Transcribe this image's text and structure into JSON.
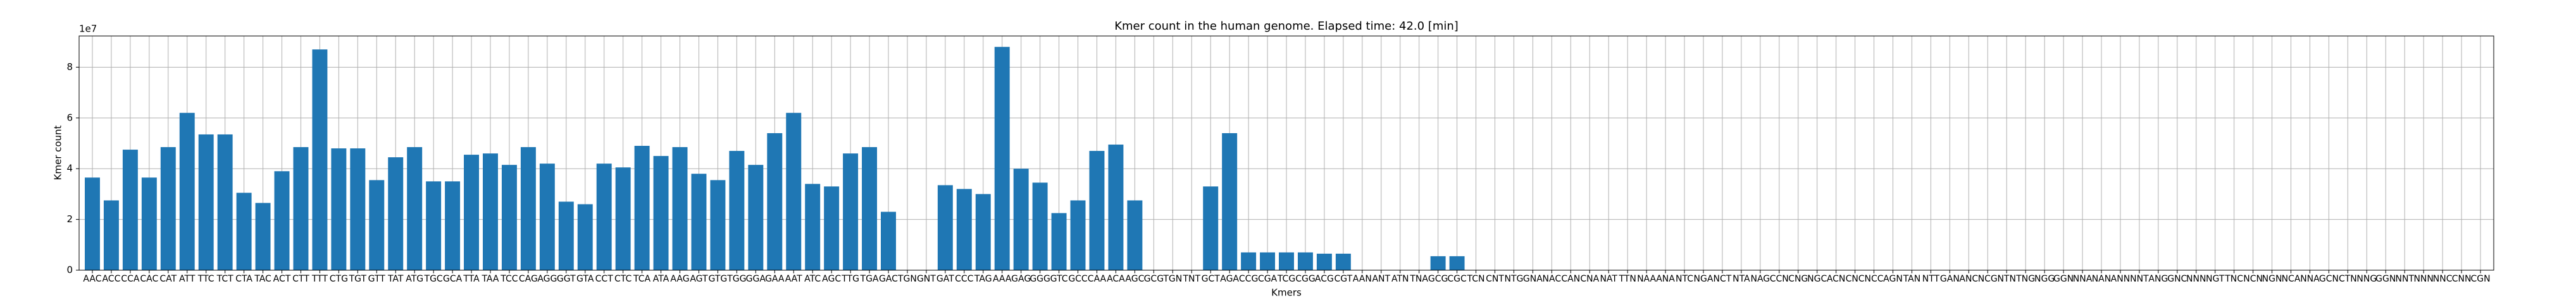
{
  "chart_data": {
    "type": "bar",
    "title": "Kmer count in the human genome. Elapsed time: 42.0 [min]",
    "x_label": "Kmers",
    "y_label": "Kmer count",
    "y_offset_label": "1e7",
    "categories": [
      "AAC",
      "ACC",
      "CCA",
      "CAC",
      "CAT",
      "ATT",
      "TTC",
      "TCT",
      "CTA",
      "TAC",
      "ACT",
      "CTT",
      "TTT",
      "CTG",
      "TGT",
      "GTT",
      "TAT",
      "ATG",
      "TGC",
      "GCA",
      "TTA",
      "TAA",
      "TCC",
      "CAG",
      "AGG",
      "GGT",
      "GTA",
      "CCT",
      "CTC",
      "TCA",
      "ATA",
      "AAG",
      "AGT",
      "GTG",
      "TGG",
      "GGA",
      "GAA",
      "AAT",
      "ATC",
      "AGC",
      "TTG",
      "TGA",
      "GAC",
      "TGN",
      "GNT",
      "GAT",
      "CCC",
      "TAG",
      "AAA",
      "GAG",
      "GGG",
      "GTC",
      "GCC",
      "CAA",
      "ACA",
      "AGC",
      "GCG",
      "TGN",
      "TNT",
      "GCT",
      "AGA",
      "CCG",
      "CGA",
      "TCG",
      "CGG",
      "ACG",
      "CGT",
      "AAN",
      "ANT",
      "ATN",
      "TNA",
      "GCG",
      "CGC",
      "TCN",
      "CNT",
      "NTG",
      "GNA",
      "NAC",
      "CAN",
      "CNA",
      "NAT",
      "TTN",
      "NAA",
      "ANA",
      "NTC",
      "NGA",
      "NCT",
      "NTA",
      "NAG",
      "CCN",
      "CNG",
      "NGC",
      "ACN",
      "CNC",
      "NCC",
      "AGN",
      "TAN",
      "NTT",
      "GAN",
      "ANC",
      "NCG",
      "NTN",
      "TNG",
      "NGG",
      "GGN",
      "NNA",
      "NAN",
      "ANN",
      "NNT",
      "ANG",
      "GNC",
      "NNN",
      "NGT",
      "TNC",
      "NCN",
      "NGN",
      "NCA",
      "NNA",
      "GCN",
      "CTN",
      "NNG",
      "GGN",
      "NNT",
      "NNN",
      "NNC",
      "CNN",
      "CGN"
    ],
    "values": [
      36500000,
      27500000,
      47500000,
      36500000,
      48500000,
      62000000,
      53500000,
      53500000,
      30500000,
      26500000,
      39000000,
      48500000,
      87000000,
      48000000,
      48000000,
      35500000,
      44500000,
      48500000,
      35000000,
      35000000,
      45500000,
      46000000,
      41500000,
      48500000,
      42000000,
      27000000,
      26000000,
      42000000,
      40500000,
      49000000,
      45000000,
      48500000,
      38000000,
      35500000,
      47000000,
      41500000,
      54000000,
      62000000,
      34000000,
      33000000,
      46000000,
      48500000,
      23000000,
      0,
      0,
      33500000,
      32000000,
      30000000,
      88000000,
      40000000,
      34500000,
      22500000,
      27500000,
      47000000,
      49500000,
      27500000,
      0,
      0,
      0,
      33000000,
      54000000,
      7000000,
      7000000,
      7000000,
      7000000,
      6500000,
      6500000,
      0,
      0,
      0,
      0,
      5500000,
      5500000,
      0,
      0,
      0,
      0,
      0,
      0,
      0,
      0,
      0,
      0,
      0,
      0,
      0,
      0,
      0,
      0,
      0,
      0,
      0,
      0,
      0,
      0,
      0,
      0,
      0,
      0,
      0,
      0,
      0,
      0,
      0,
      0,
      0,
      0,
      0,
      0,
      0,
      0,
      0,
      0,
      0,
      0,
      0,
      0,
      0,
      0,
      0,
      0,
      0,
      0,
      0,
      0,
      0,
      0
    ],
    "color": "#1f77b4",
    "ylim": [
      0,
      92300000
    ],
    "yticks": [
      {
        "value": 0,
        "label": "0"
      },
      {
        "value": 20000000,
        "label": "2"
      },
      {
        "value": 40000000,
        "label": "4"
      },
      {
        "value": 60000000,
        "label": "6"
      },
      {
        "value": 80000000,
        "label": "8"
      }
    ],
    "grid": true
  }
}
